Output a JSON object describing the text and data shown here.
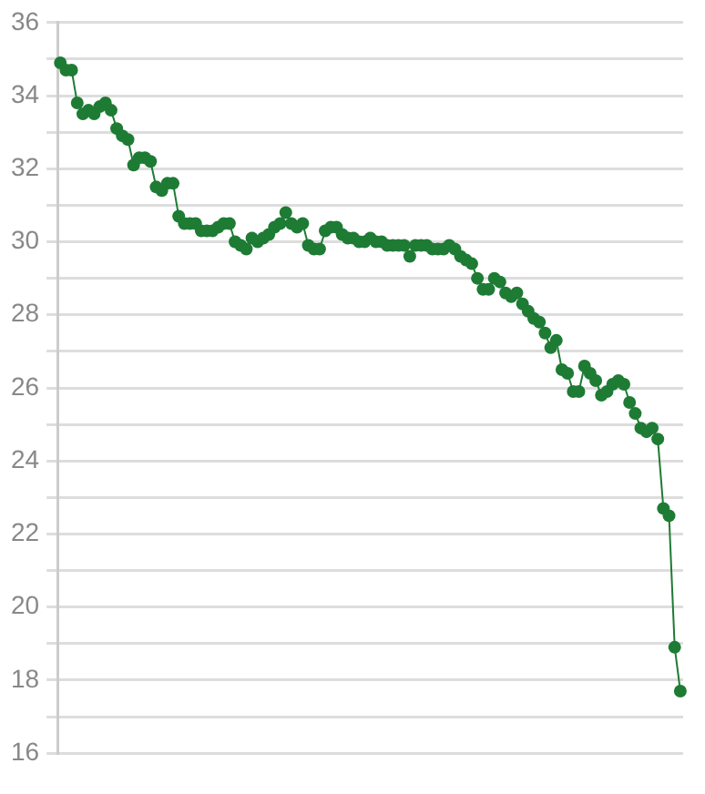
{
  "chart_data": {
    "type": "line",
    "categories": [
      null,
      null,
      null,
      null,
      null,
      null,
      null,
      null,
      null,
      null,
      null,
      null,
      null,
      null,
      null,
      null,
      null,
      null,
      null,
      null,
      null,
      null,
      null,
      null,
      null,
      null,
      null,
      null,
      null,
      null,
      null,
      null,
      null,
      null,
      null,
      null,
      null,
      null,
      null,
      null,
      null,
      null,
      null,
      null,
      null,
      null,
      null,
      null,
      null,
      null,
      null,
      null,
      null,
      null,
      null,
      null,
      null,
      null,
      null,
      null,
      null,
      null,
      null,
      null,
      null,
      null,
      null,
      null,
      null,
      null,
      null,
      null,
      null,
      null,
      null,
      null,
      null,
      null,
      null,
      null,
      null,
      null,
      null,
      null,
      null,
      null,
      null,
      null,
      null,
      null,
      null,
      null,
      null,
      null,
      null,
      null,
      null,
      null,
      null,
      null,
      null,
      null,
      null,
      null,
      null,
      null,
      null,
      null,
      null,
      null,
      null
    ],
    "series": [
      {
        "color": "#1e7b34",
        "values": [
          34.9,
          34.7,
          34.7,
          33.8,
          33.5,
          33.6,
          33.5,
          33.7,
          33.8,
          33.6,
          33.1,
          32.9,
          32.8,
          32.1,
          32.3,
          32.3,
          32.2,
          31.5,
          31.4,
          31.6,
          31.6,
          30.7,
          30.5,
          30.5,
          30.5,
          30.3,
          30.3,
          30.3,
          30.4,
          30.5,
          30.5,
          30.0,
          29.9,
          29.8,
          30.1,
          30.0,
          30.1,
          30.2,
          30.4,
          30.5,
          30.8,
          30.5,
          30.4,
          30.5,
          29.9,
          29.8,
          29.8,
          30.3,
          30.4,
          30.4,
          30.2,
          30.1,
          30.1,
          30.0,
          30.0,
          30.1,
          30.0,
          30.0,
          29.9,
          29.9,
          29.9,
          29.9,
          29.6,
          29.9,
          29.9,
          29.9,
          29.8,
          29.8,
          29.8,
          29.9,
          29.8,
          29.6,
          29.5,
          29.4,
          29.0,
          28.7,
          28.7,
          29.0,
          28.9,
          28.6,
          28.5,
          28.6,
          28.3,
          28.1,
          27.9,
          27.8,
          27.5,
          27.1,
          27.3,
          26.5,
          26.4,
          25.9,
          25.9,
          26.6,
          26.4,
          26.2,
          25.8,
          25.9,
          26.1,
          26.2,
          26.1,
          25.6,
          25.3,
          24.9,
          24.8,
          24.9,
          24.6,
          22.7,
          22.5,
          18.9,
          17.7
        ]
      }
    ],
    "ylim": [
      16,
      36
    ],
    "yticks": [
      16,
      {
        "value": 17,
        "label": null
      },
      18,
      {
        "value": 19,
        "label": null
      },
      20,
      {
        "value": 21,
        "label": null
      },
      22,
      {
        "value": 23,
        "label": null
      },
      24,
      {
        "value": 25,
        "label": null
      },
      26,
      {
        "value": 27,
        "label": null
      },
      28,
      {
        "value": 29,
        "label": null
      },
      30,
      {
        "value": 31,
        "label": null
      },
      32,
      {
        "value": 33,
        "label": null
      },
      34,
      {
        "value": 35,
        "label": null
      },
      36
    ],
    "grid": "y",
    "marker": "circle",
    "line_style": "solid",
    "legend": false
  }
}
